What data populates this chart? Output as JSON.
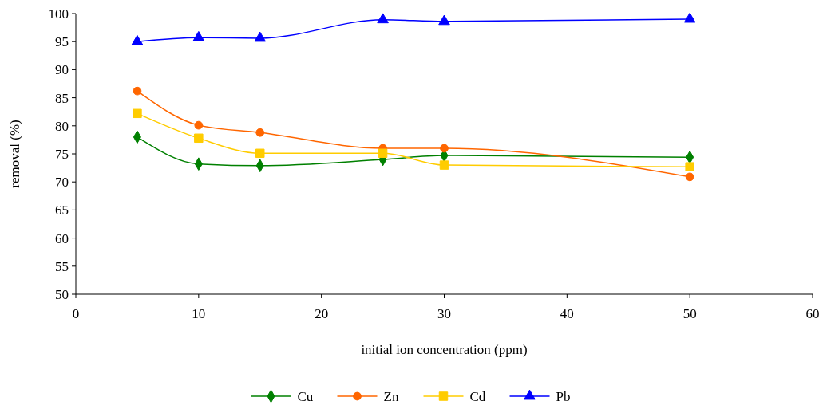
{
  "chart_data": {
    "type": "line",
    "xlabel": "initial ion concentration (ppm)",
    "ylabel": "removal  (%)",
    "xlim": [
      0,
      60
    ],
    "xticks": [
      0,
      10,
      20,
      30,
      40,
      50,
      60
    ],
    "ylim": [
      50,
      100
    ],
    "yticks": [
      50,
      55,
      60,
      65,
      70,
      75,
      80,
      85,
      90,
      95,
      100
    ],
    "grid": false,
    "legend": "bottom",
    "x": [
      5,
      10,
      15,
      25,
      30,
      50
    ],
    "series": [
      {
        "name": "Cu",
        "color": "#008000",
        "marker": "diamond",
        "values": [
          78,
          73.2,
          72.9,
          74,
          74.7,
          74.4
        ]
      },
      {
        "name": "Zn",
        "color": "#ff6600",
        "marker": "circle",
        "values": [
          86.2,
          80.1,
          78.8,
          76,
          76,
          70.9
        ]
      },
      {
        "name": "Cd",
        "color": "#ffcc00",
        "marker": "square",
        "values": [
          82.2,
          77.8,
          75.1,
          75.1,
          73,
          72.7
        ]
      },
      {
        "name": "Pb",
        "color": "#0000ff",
        "marker": "triangle",
        "values": [
          95,
          95.7,
          95.6,
          98.9,
          98.6,
          99
        ]
      }
    ]
  }
}
